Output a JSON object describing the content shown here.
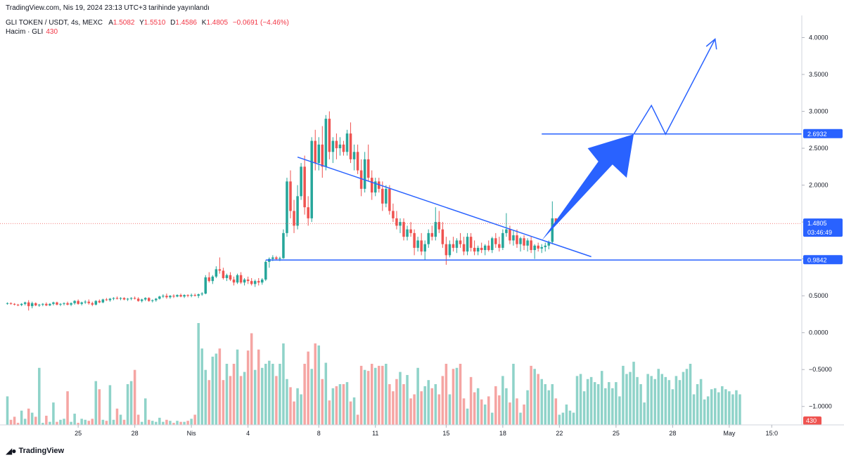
{
  "publish_line": "TradingView.com, Nis 19, 2024 23:13 UTC+3 tarihinde yayınlandı",
  "symbol": {
    "title": "GLI TOKEN / USDT, 4s, MEXC",
    "open_k": "A",
    "open_v": "1.5082",
    "high_k": "Y",
    "high_v": "1.5510",
    "low_k": "D",
    "low_v": "1.4586",
    "close_k": "K",
    "close_v": "1.4805",
    "change": "−0.0691 (−4.46%)"
  },
  "volume": {
    "label": "Hacim · GLI",
    "value": "430"
  },
  "footer": {
    "brand": "TradingView"
  },
  "colors": {
    "up": "#26a69a",
    "down": "#ef5350",
    "up_vol": "#8fd3c9",
    "down_vol": "#f5a5a3",
    "drawing": "#2962ff"
  },
  "chart_data": {
    "type": "candlestick",
    "ylim": [
      -1.25,
      4.3
    ],
    "y_ticks": [
      "4.0000",
      "3.5000",
      "3.0000",
      "2.5000",
      "2.0000",
      "1.5000",
      "1.0000",
      "0.5000",
      "0.0000",
      "−0.5000",
      "−1.0000"
    ],
    "y_tick_values": [
      4.0,
      3.5,
      3.0,
      2.5,
      2.0,
      1.5,
      1.0,
      0.5,
      0.0,
      -0.5,
      -1.0
    ],
    "x_ticks": [
      "25",
      "28",
      "Nis",
      "4",
      "8",
      "11",
      "15",
      "18",
      "22",
      "25",
      "28",
      "May",
      "15:0"
    ],
    "x_tick_bars": [
      20,
      36,
      52,
      68,
      88,
      104,
      124,
      140,
      156,
      172,
      188,
      204,
      216
    ],
    "total_slots": 225,
    "price_labels": [
      {
        "label": "2.6932",
        "value": 2.6932
      },
      {
        "label": "1.4805",
        "value": 1.4805,
        "sub": "03:46:49"
      },
      {
        "label": "0.9842",
        "value": 0.9842
      }
    ],
    "volume_last_label": "430",
    "support_level": 0.9842,
    "target_level": 2.6932,
    "candles": [
      [
        0.395,
        0.41,
        0.38,
        0.4
      ],
      [
        0.4,
        0.41,
        0.38,
        0.39
      ],
      [
        0.39,
        0.4,
        0.37,
        0.38
      ],
      [
        0.38,
        0.39,
        0.36,
        0.375
      ],
      [
        0.375,
        0.4,
        0.36,
        0.39
      ],
      [
        0.39,
        0.42,
        0.37,
        0.41
      ],
      [
        0.41,
        0.44,
        0.3,
        0.36
      ],
      [
        0.36,
        0.42,
        0.33,
        0.4
      ],
      [
        0.4,
        0.41,
        0.36,
        0.37
      ],
      [
        0.37,
        0.39,
        0.35,
        0.38
      ],
      [
        0.38,
        0.4,
        0.36,
        0.39
      ],
      [
        0.39,
        0.41,
        0.36,
        0.37
      ],
      [
        0.37,
        0.4,
        0.36,
        0.39
      ],
      [
        0.39,
        0.42,
        0.37,
        0.41
      ],
      [
        0.41,
        0.42,
        0.37,
        0.38
      ],
      [
        0.38,
        0.4,
        0.36,
        0.39
      ],
      [
        0.39,
        0.41,
        0.37,
        0.4
      ],
      [
        0.4,
        0.42,
        0.37,
        0.38
      ],
      [
        0.38,
        0.41,
        0.36,
        0.4
      ],
      [
        0.4,
        0.44,
        0.38,
        0.43
      ],
      [
        0.43,
        0.45,
        0.38,
        0.39
      ],
      [
        0.39,
        0.42,
        0.37,
        0.41
      ],
      [
        0.41,
        0.44,
        0.39,
        0.42
      ],
      [
        0.42,
        0.45,
        0.38,
        0.4
      ],
      [
        0.4,
        0.42,
        0.36,
        0.38
      ],
      [
        0.38,
        0.44,
        0.37,
        0.43
      ],
      [
        0.43,
        0.45,
        0.4,
        0.41
      ],
      [
        0.41,
        0.46,
        0.4,
        0.45
      ],
      [
        0.45,
        0.47,
        0.43,
        0.44
      ],
      [
        0.44,
        0.47,
        0.42,
        0.46
      ],
      [
        0.46,
        0.48,
        0.44,
        0.47
      ],
      [
        0.47,
        0.49,
        0.45,
        0.46
      ],
      [
        0.46,
        0.48,
        0.44,
        0.47
      ],
      [
        0.47,
        0.48,
        0.44,
        0.45
      ],
      [
        0.45,
        0.47,
        0.43,
        0.46
      ],
      [
        0.46,
        0.48,
        0.44,
        0.47
      ],
      [
        0.47,
        0.49,
        0.45,
        0.46
      ],
      [
        0.46,
        0.48,
        0.42,
        0.43
      ],
      [
        0.43,
        0.46,
        0.41,
        0.45
      ],
      [
        0.45,
        0.48,
        0.43,
        0.47
      ],
      [
        0.47,
        0.48,
        0.42,
        0.43
      ],
      [
        0.43,
        0.45,
        0.41,
        0.44
      ],
      [
        0.44,
        0.47,
        0.42,
        0.46
      ],
      [
        0.46,
        0.5,
        0.45,
        0.49
      ],
      [
        0.49,
        0.52,
        0.47,
        0.5
      ],
      [
        0.5,
        0.53,
        0.46,
        0.48
      ],
      [
        0.48,
        0.51,
        0.46,
        0.5
      ],
      [
        0.5,
        0.52,
        0.47,
        0.49
      ],
      [
        0.49,
        0.52,
        0.48,
        0.51
      ],
      [
        0.51,
        0.53,
        0.48,
        0.49
      ],
      [
        0.49,
        0.52,
        0.47,
        0.51
      ],
      [
        0.51,
        0.52,
        0.48,
        0.5
      ],
      [
        0.5,
        0.53,
        0.48,
        0.51
      ],
      [
        0.51,
        0.53,
        0.49,
        0.5
      ],
      [
        0.5,
        0.53,
        0.47,
        0.52
      ],
      [
        0.52,
        0.55,
        0.5,
        0.53
      ],
      [
        0.53,
        0.78,
        0.52,
        0.75
      ],
      [
        0.75,
        0.82,
        0.68,
        0.7
      ],
      [
        0.7,
        0.78,
        0.66,
        0.76
      ],
      [
        0.76,
        0.9,
        0.74,
        0.86
      ],
      [
        0.86,
        1.02,
        0.8,
        0.84
      ],
      [
        0.84,
        0.88,
        0.72,
        0.74
      ],
      [
        0.74,
        0.8,
        0.7,
        0.78
      ],
      [
        0.78,
        0.82,
        0.7,
        0.72
      ],
      [
        0.72,
        0.76,
        0.64,
        0.68
      ],
      [
        0.68,
        0.8,
        0.66,
        0.78
      ],
      [
        0.78,
        0.82,
        0.66,
        0.68
      ],
      [
        0.68,
        0.74,
        0.64,
        0.72
      ],
      [
        0.72,
        0.76,
        0.66,
        0.7
      ],
      [
        0.7,
        0.74,
        0.64,
        0.66
      ],
      [
        0.66,
        0.72,
        0.62,
        0.7
      ],
      [
        0.7,
        0.74,
        0.64,
        0.68
      ],
      [
        0.68,
        0.74,
        0.65,
        0.72
      ],
      [
        0.72,
        0.98,
        0.7,
        0.96
      ],
      [
        0.96,
        1.02,
        0.88,
        1.0
      ],
      [
        1.0,
        1.05,
        0.97,
        1.02
      ],
      [
        1.02,
        1.04,
        0.98,
        1.0
      ],
      [
        1.0,
        1.03,
        0.97,
        1.01
      ],
      [
        1.01,
        1.4,
        1.0,
        1.35
      ],
      [
        1.35,
        2.1,
        1.3,
        2.05
      ],
      [
        2.05,
        2.2,
        1.55,
        1.65
      ],
      [
        1.65,
        1.8,
        1.35,
        1.45
      ],
      [
        1.45,
        2.0,
        1.4,
        1.85
      ],
      [
        1.85,
        2.3,
        1.8,
        2.25
      ],
      [
        2.25,
        2.4,
        1.6,
        1.7
      ],
      [
        1.7,
        1.85,
        1.45,
        1.55
      ],
      [
        1.55,
        2.65,
        1.5,
        2.6
      ],
      [
        2.6,
        2.75,
        2.2,
        2.3
      ],
      [
        2.3,
        2.65,
        2.2,
        2.55
      ],
      [
        2.55,
        2.8,
        2.1,
        2.25
      ],
      [
        2.25,
        2.95,
        2.2,
        2.9
      ],
      [
        2.9,
        3.0,
        2.35,
        2.45
      ],
      [
        2.45,
        2.65,
        2.3,
        2.6
      ],
      [
        2.6,
        2.7,
        2.35,
        2.5
      ],
      [
        2.5,
        2.65,
        2.4,
        2.55
      ],
      [
        2.55,
        2.6,
        2.4,
        2.45
      ],
      [
        2.45,
        2.75,
        2.4,
        2.7
      ],
      [
        2.7,
        2.85,
        2.3,
        2.35
      ],
      [
        2.35,
        2.55,
        2.2,
        2.45
      ],
      [
        2.45,
        2.55,
        2.15,
        2.2
      ],
      [
        2.2,
        2.35,
        1.85,
        1.95
      ],
      [
        1.95,
        2.45,
        1.9,
        2.35
      ],
      [
        2.35,
        2.55,
        2.05,
        2.1
      ],
      [
        2.1,
        2.2,
        1.8,
        1.9
      ],
      [
        1.9,
        2.1,
        1.85,
        2.05
      ],
      [
        2.05,
        2.1,
        1.9,
        1.95
      ],
      [
        1.95,
        2.05,
        1.65,
        1.75
      ],
      [
        1.75,
        2.0,
        1.7,
        1.95
      ],
      [
        1.95,
        2.0,
        1.6,
        1.65
      ],
      [
        1.65,
        1.75,
        1.5,
        1.55
      ],
      [
        1.55,
        1.65,
        1.4,
        1.45
      ],
      [
        1.45,
        1.55,
        1.35,
        1.5
      ],
      [
        1.5,
        1.55,
        1.25,
        1.3
      ],
      [
        1.3,
        1.45,
        1.25,
        1.4
      ],
      [
        1.4,
        1.5,
        1.3,
        1.35
      ],
      [
        1.35,
        1.4,
        1.05,
        1.15
      ],
      [
        1.15,
        1.3,
        1.1,
        1.25
      ],
      [
        1.25,
        1.35,
        1.05,
        1.1
      ],
      [
        1.1,
        1.25,
        0.98,
        1.2
      ],
      [
        1.2,
        1.4,
        1.15,
        1.35
      ],
      [
        1.35,
        1.45,
        1.25,
        1.3
      ],
      [
        1.3,
        1.7,
        1.25,
        1.5
      ],
      [
        1.5,
        1.65,
        1.35,
        1.4
      ],
      [
        1.4,
        1.5,
        1.15,
        1.2
      ],
      [
        1.2,
        1.3,
        0.92,
        1.05
      ],
      [
        1.05,
        1.25,
        1.02,
        1.2
      ],
      [
        1.2,
        1.3,
        1.1,
        1.15
      ],
      [
        1.15,
        1.28,
        1.08,
        1.25
      ],
      [
        1.25,
        1.35,
        1.15,
        1.2
      ],
      [
        1.2,
        1.3,
        1.05,
        1.1
      ],
      [
        1.1,
        1.35,
        1.05,
        1.3
      ],
      [
        1.3,
        1.35,
        1.1,
        1.15
      ],
      [
        1.15,
        1.25,
        1.05,
        1.1
      ],
      [
        1.1,
        1.18,
        1.05,
        1.15
      ],
      [
        1.15,
        1.22,
        1.08,
        1.12
      ],
      [
        1.12,
        1.2,
        1.05,
        1.18
      ],
      [
        1.18,
        1.25,
        1.1,
        1.12
      ],
      [
        1.12,
        1.3,
        1.08,
        1.28
      ],
      [
        1.28,
        1.35,
        1.15,
        1.2
      ],
      [
        1.2,
        1.3,
        1.1,
        1.15
      ],
      [
        1.15,
        1.4,
        1.12,
        1.35
      ],
      [
        1.35,
        1.62,
        1.3,
        1.4
      ],
      [
        1.4,
        1.45,
        1.2,
        1.25
      ],
      [
        1.25,
        1.38,
        1.18,
        1.32
      ],
      [
        1.32,
        1.4,
        1.15,
        1.2
      ],
      [
        1.2,
        1.3,
        1.1,
        1.28
      ],
      [
        1.28,
        1.32,
        1.12,
        1.18
      ],
      [
        1.18,
        1.28,
        1.1,
        1.25
      ],
      [
        1.25,
        1.3,
        1.08,
        1.12
      ],
      [
        1.12,
        1.2,
        1.0,
        1.18
      ],
      [
        1.18,
        1.22,
        1.1,
        1.14
      ],
      [
        1.14,
        1.2,
        1.08,
        1.16
      ],
      [
        1.16,
        1.22,
        1.1,
        1.18
      ],
      [
        1.18,
        1.25,
        1.13,
        1.23
      ],
      [
        1.23,
        1.78,
        1.2,
        1.55
      ],
      [
        1.55,
        1.55,
        1.46,
        1.48
      ]
    ],
    "volumes": [
      0.28,
      0.05,
      0.08,
      0.02,
      0.14,
      0.06,
      0.16,
      0.12,
      0.08,
      0.56,
      0.02,
      0.09,
      0.03,
      0.22,
      0.03,
      0.05,
      0.06,
      0.33,
      0.03,
      0.11,
      0.02,
      0.06,
      0.05,
      0.04,
      0.06,
      0.43,
      0.35,
      0.05,
      0.04,
      0.39,
      0.05,
      0.16,
      0.1,
      0.05,
      0.4,
      0.43,
      0.54,
      0.1,
      0.03,
      0.26,
      0.05,
      0.04,
      0.03,
      0.07,
      0.03,
      0.05,
      0.04,
      0.02,
      0.04,
      0.03,
      0.03,
      0.04,
      0.06,
      0.1,
      1.0,
      0.75,
      0.54,
      0.44,
      0.67,
      0.7,
      0.75,
      0.44,
      0.6,
      0.48,
      0.6,
      0.74,
      0.48,
      0.52,
      0.73,
      0.9,
      0.54,
      0.74,
      0.56,
      0.6,
      0.63,
      0.6,
      0.48,
      0.6,
      0.8,
      0.45,
      0.37,
      0.23,
      0.36,
      0.3,
      0.6,
      0.72,
      0.55,
      0.8,
      0.78,
      0.45,
      0.61,
      0.24,
      0.36,
      0.38,
      0.4,
      0.4,
      0.42,
      0.23,
      0.27,
      0.1,
      0.58,
      0.54,
      0.53,
      0.6,
      0.56,
      0.58,
      0.58,
      0.6,
      0.4,
      0.33,
      0.45,
      0.52,
      0.4,
      0.49,
      0.26,
      0.3,
      0.56,
      0.33,
      0.38,
      0.44,
      0.36,
      0.4,
      0.3,
      0.48,
      0.6,
      0.3,
      0.55,
      0.56,
      0.6,
      0.26,
      0.16,
      0.47,
      0.32,
      0.36,
      0.25,
      0.2,
      0.28,
      0.12,
      0.38,
      0.29,
      0.48,
      0.36,
      0.22,
      0.6,
      0.26,
      0.12,
      0.2,
      0.34,
      0.58,
      0.55,
      0.5,
      0.45,
      0.4,
      0.34,
      0.4,
      0.26,
      0.1,
      0.12,
      0.2,
      0.14,
      0.12,
      0.48,
      0.5,
      0.33,
      0.45,
      0.47,
      0.42,
      0.4,
      0.53,
      0.36,
      0.42,
      0.36,
      0.42,
      0.28,
      0.58,
      0.5,
      0.52,
      0.62,
      0.47,
      0.4,
      0.22,
      0.5,
      0.48,
      0.45,
      0.55,
      0.5,
      0.47,
      0.44,
      0.35,
      0.48,
      0.44,
      0.52,
      0.55,
      0.6,
      0.3,
      0.4,
      0.45,
      0.25,
      0.28,
      0.35,
      0.36,
      0.32,
      0.38,
      0.35,
      0.33,
      0.3,
      0.34,
      0.3
    ]
  }
}
